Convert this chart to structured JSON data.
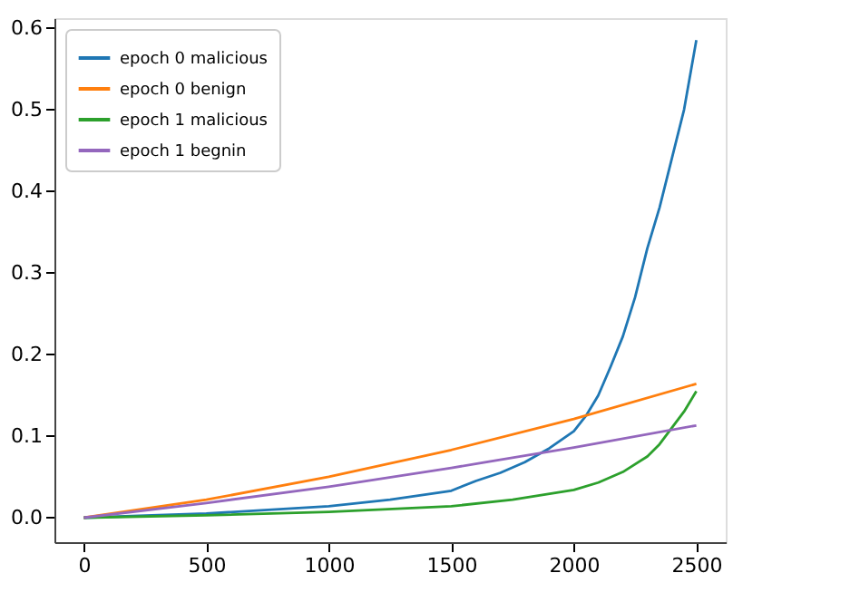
{
  "chart_data": {
    "type": "line",
    "xlim": [
      -120,
      2620
    ],
    "ylim": [
      -0.03,
      0.612
    ],
    "xticks": [
      0,
      500,
      1000,
      1500,
      2000,
      2500
    ],
    "yticks": [
      {
        "value": 0,
        "label": "0.0"
      },
      {
        "value": 0.1,
        "label": "0.1"
      },
      {
        "value": 0.2,
        "label": "0.2"
      },
      {
        "value": 0.3,
        "label": "0.3"
      },
      {
        "value": 0.4,
        "label": "0.4"
      },
      {
        "value": 0.5,
        "label": "0.5"
      },
      {
        "value": 0.6,
        "label": "0.6"
      }
    ],
    "grid": false,
    "legend": "top left",
    "marker": "none",
    "line_style": "solid",
    "series": [
      {
        "name": "epoch 0 malicious",
        "color": "#1f77b4",
        "x": [
          0,
          500,
          1000,
          1250,
          1500,
          1600,
          1700,
          1800,
          1900,
          2000,
          2050,
          2100,
          2150,
          2200,
          2250,
          2300,
          2350,
          2400,
          2450,
          2500
        ],
        "values": [
          0,
          0.005,
          0.014,
          0.022,
          0.033,
          0.045,
          0.055,
          0.068,
          0.085,
          0.106,
          0.125,
          0.15,
          0.185,
          0.222,
          0.27,
          0.33,
          0.38,
          0.44,
          0.5,
          0.585
        ]
      },
      {
        "name": "epoch 0 benign",
        "color": "#ff7f0e",
        "x": [
          0,
          500,
          1000,
          1500,
          2000,
          2500
        ],
        "values": [
          0,
          0.022,
          0.05,
          0.083,
          0.121,
          0.164
        ]
      },
      {
        "name": "epoch 1 malicious",
        "color": "#2ca02c",
        "x": [
          0,
          500,
          1000,
          1500,
          1750,
          2000,
          2100,
          2200,
          2300,
          2350,
          2400,
          2450,
          2500
        ],
        "values": [
          0,
          0.003,
          0.007,
          0.014,
          0.022,
          0.034,
          0.043,
          0.056,
          0.075,
          0.09,
          0.11,
          0.13,
          0.155
        ]
      },
      {
        "name": "epoch 1 begnin",
        "color": "#9467bd",
        "x": [
          0,
          500,
          1000,
          1500,
          2000,
          2500
        ],
        "values": [
          0,
          0.018,
          0.038,
          0.061,
          0.086,
          0.113
        ]
      }
    ]
  }
}
